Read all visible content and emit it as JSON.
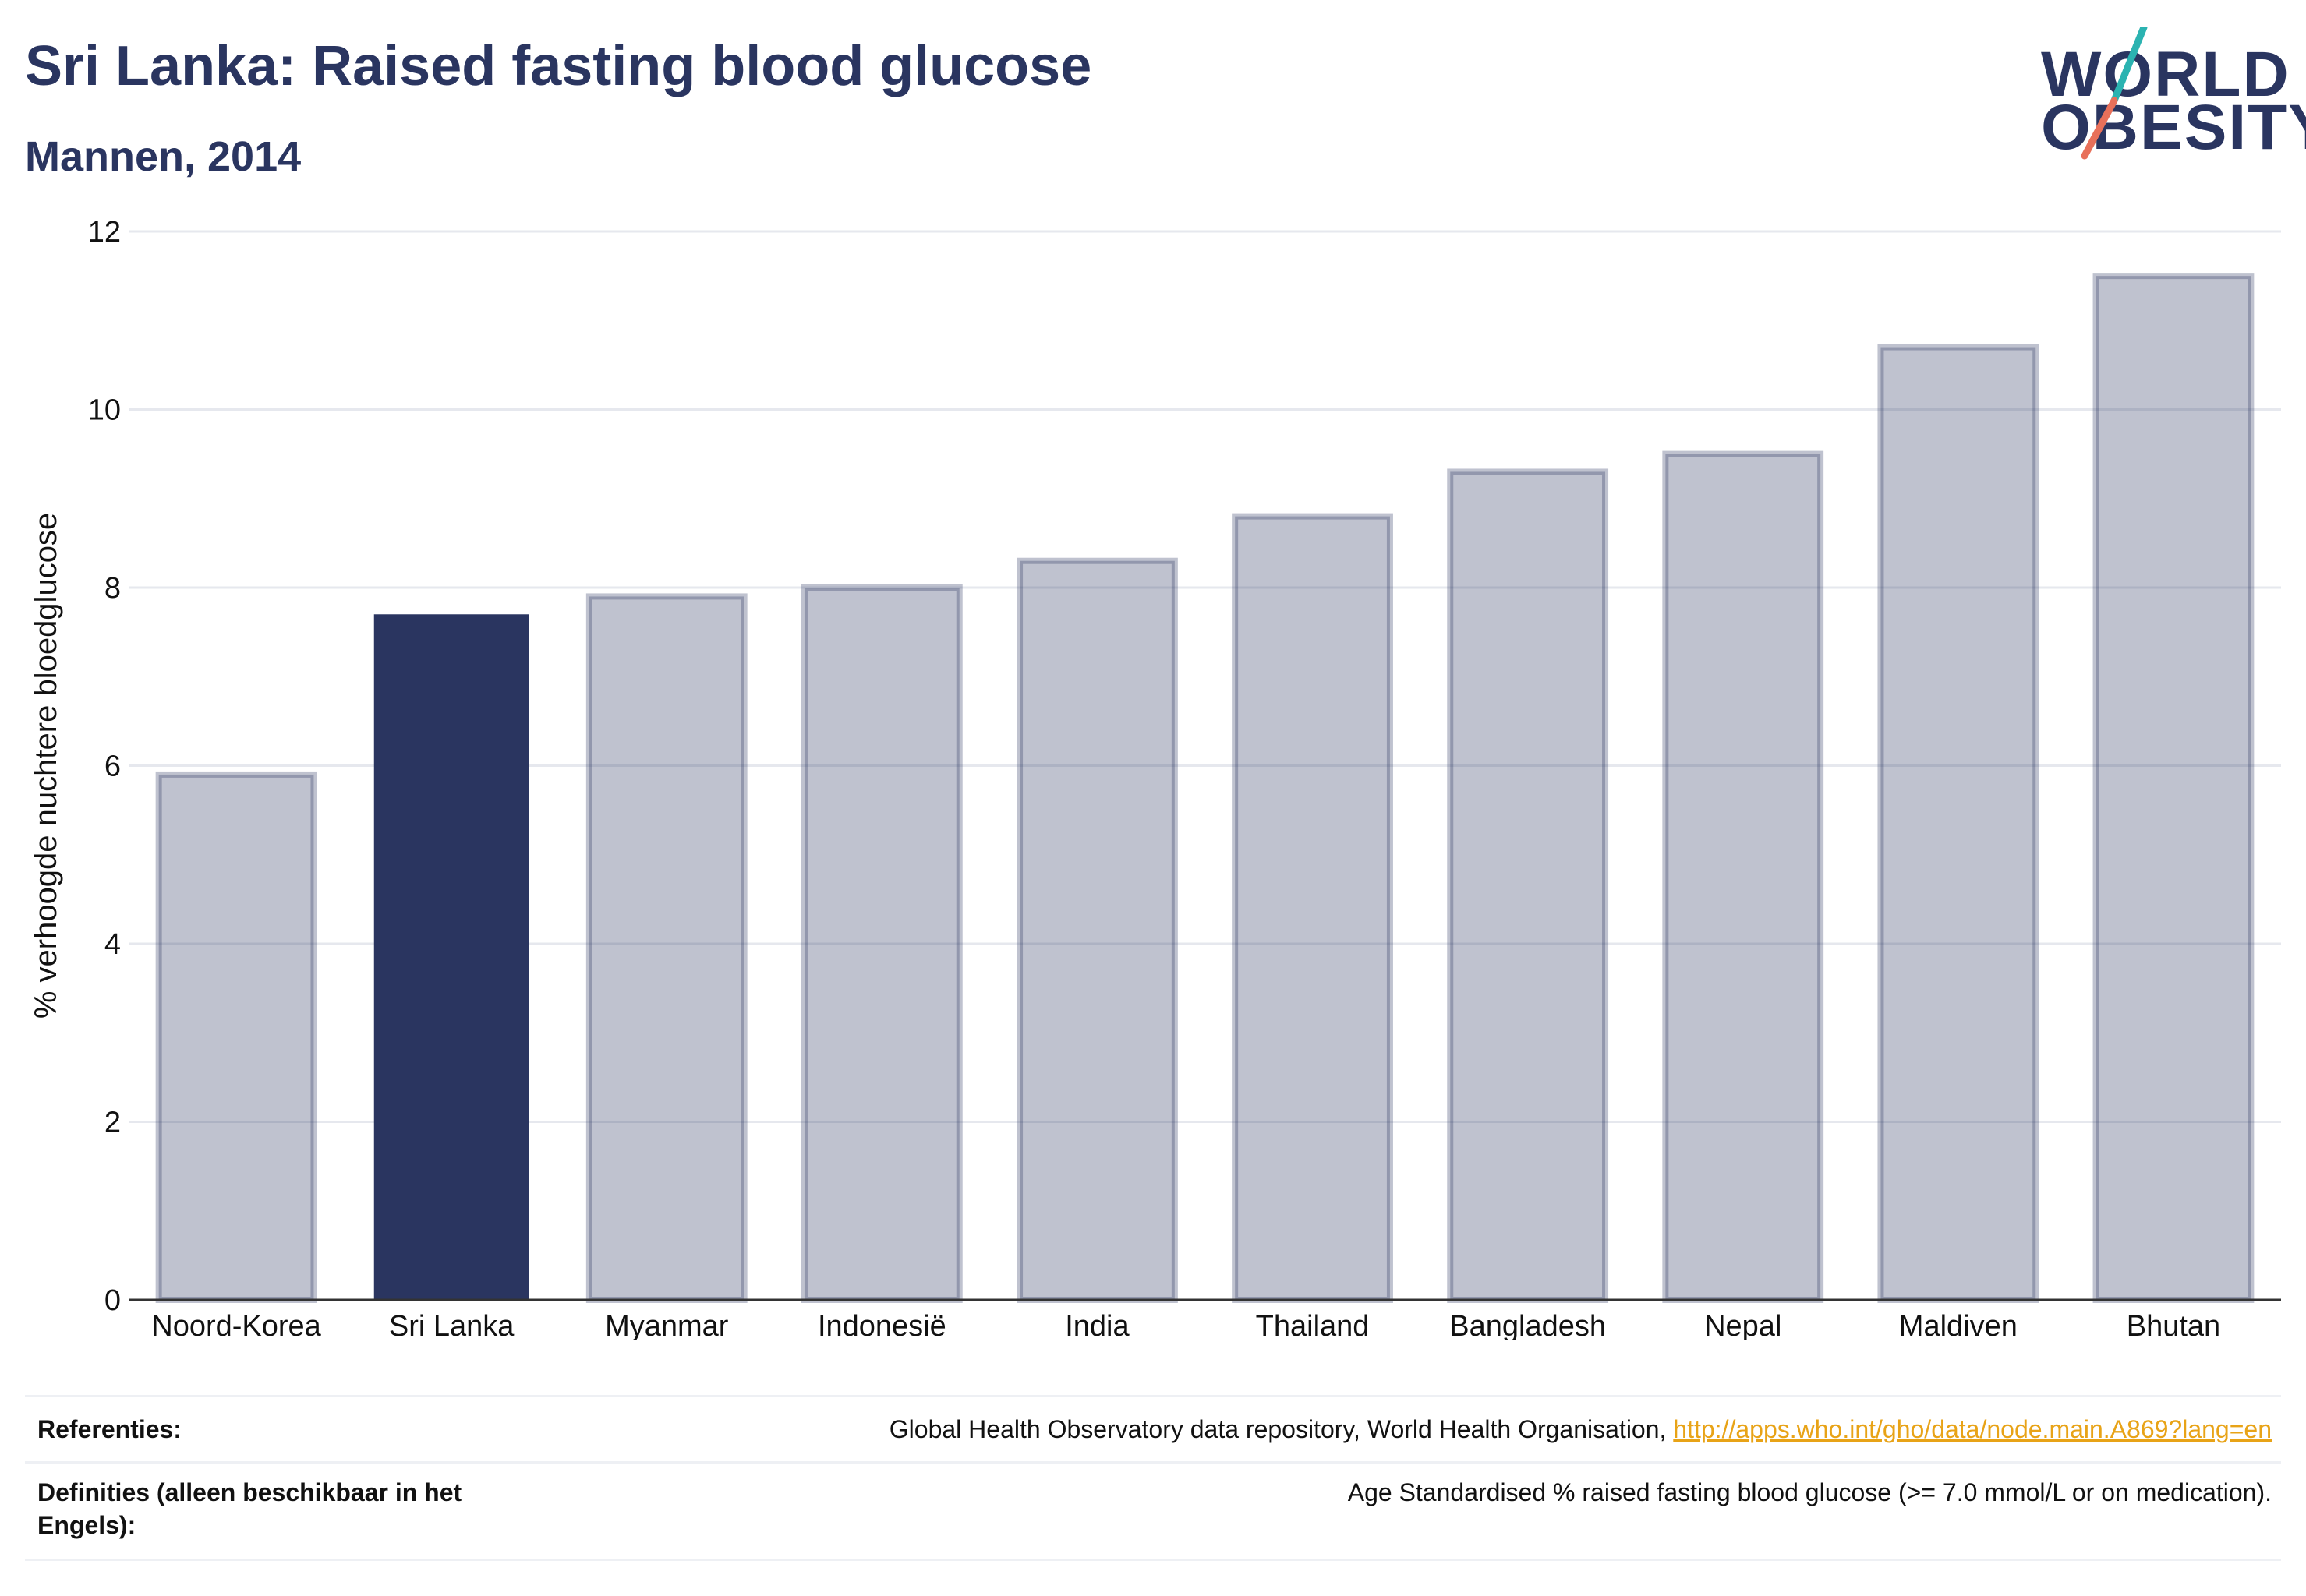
{
  "header": {
    "title": "Sri Lanka: Raised fasting blood glucose",
    "subtitle": "Mannen, 2014"
  },
  "logo": {
    "line1": "WORLD",
    "line2": "OBESITY",
    "colors": {
      "text": "#2a3560",
      "slash_top": "#2bb3b1",
      "slash_bottom": "#e8705a"
    }
  },
  "chart_data": {
    "type": "bar",
    "title": "",
    "xlabel": "",
    "ylabel": "% verhoogde nuchtere bloedglucose",
    "ylim": [
      0,
      12
    ],
    "yticks": [
      0,
      2,
      4,
      6,
      8,
      10,
      12
    ],
    "grid": true,
    "categories": [
      "Noord-Korea",
      "Sri Lanka",
      "Myanmar",
      "Indonesië",
      "India",
      "Thailand",
      "Bangladesh",
      "Nepal",
      "Maldiven",
      "Bhutan"
    ],
    "values": [
      5.9,
      7.7,
      7.9,
      8.0,
      8.3,
      8.8,
      9.3,
      9.5,
      10.7,
      11.5
    ],
    "highlight": "Sri Lanka",
    "colors": {
      "highlight": "#2a3560",
      "other": "#2a3560",
      "other_opacity": 0.3,
      "axis": "#333333",
      "grid": "#e6e8ee",
      "text": "#111111"
    }
  },
  "references": {
    "label": "Referenties:",
    "text": "Global Health Observatory data repository, World Health Organisation, ",
    "link": "http://apps.who.int/gho/data/node.main.A869?lang=en"
  },
  "definitions": {
    "label_line1": "Definities (alleen beschikbaar in het",
    "label_line2": "Engels):",
    "text": "Age Standardised % raised fasting blood glucose (>= 7.0 mmol/L or on medication)."
  }
}
